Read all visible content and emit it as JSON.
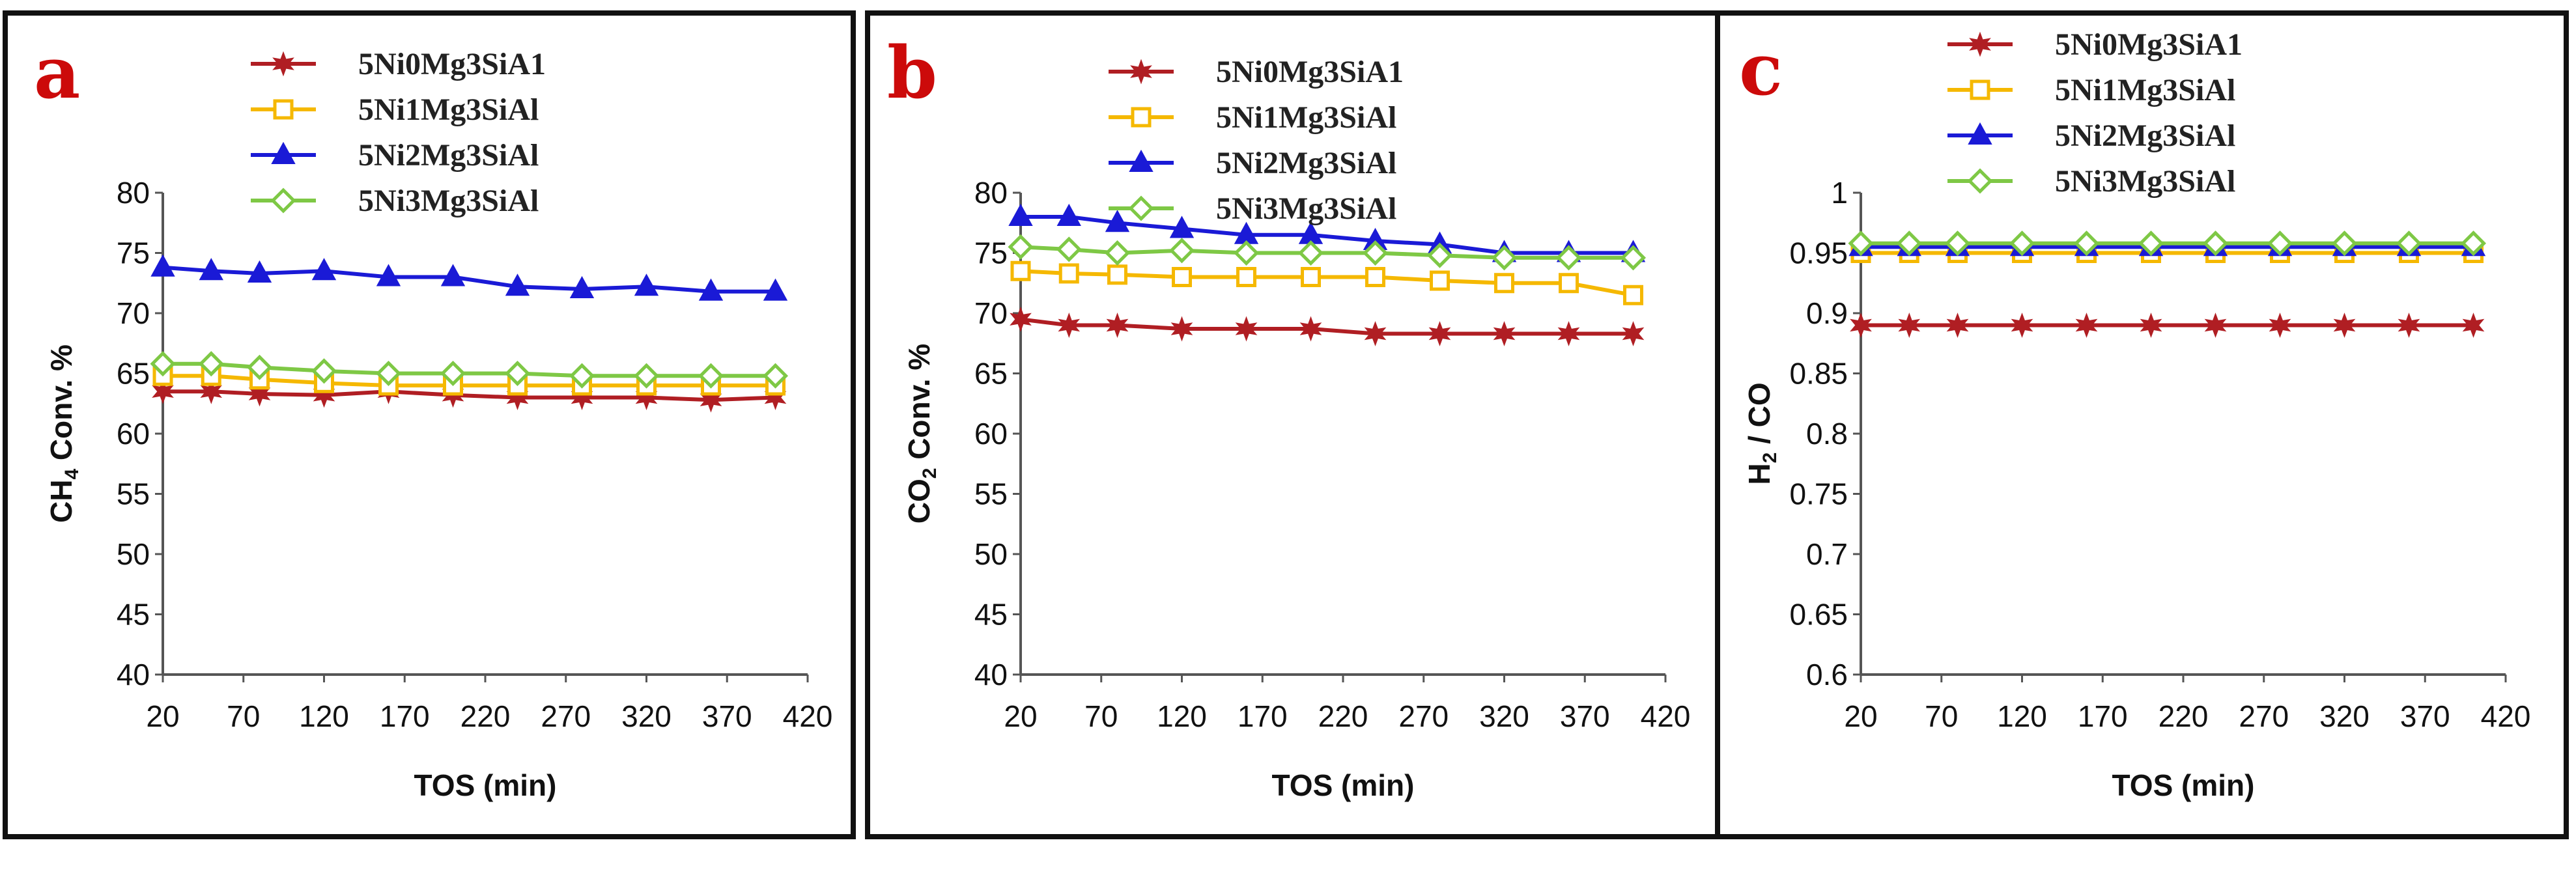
{
  "chart_data": [
    {
      "panel": "a",
      "type": "line",
      "xlabel": "TOS (min)",
      "ylabel": "CH4 Conv. %",
      "ylabel_parts": [
        "CH",
        "4",
        " Conv. %"
      ],
      "ylim": [
        40,
        80
      ],
      "yticks": [
        40,
        45,
        50,
        55,
        60,
        65,
        70,
        75,
        80
      ],
      "xlim": [
        20,
        420
      ],
      "xticks": [
        20,
        70,
        120,
        170,
        220,
        270,
        320,
        370,
        420
      ],
      "x": [
        20,
        50,
        80,
        120,
        160,
        200,
        240,
        280,
        320,
        360,
        400
      ],
      "legend_position": "top-center",
      "series": [
        {
          "name": "5Ni0Mg3SiA1",
          "color": "#b01e23",
          "marker": "star",
          "values": [
            63.5,
            63.5,
            63.3,
            63.2,
            63.5,
            63.2,
            63.0,
            63.0,
            63.0,
            62.8,
            63.0
          ]
        },
        {
          "name": "5Ni1Mg3SiAl",
          "color": "#f5b800",
          "marker": "square",
          "values": [
            64.8,
            64.8,
            64.5,
            64.2,
            64.0,
            64.0,
            64.0,
            64.0,
            64.0,
            64.0,
            64.0
          ]
        },
        {
          "name": "5Ni2Mg3SiAl",
          "color": "#1a1ad6",
          "marker": "triangle",
          "values": [
            73.8,
            73.5,
            73.3,
            73.5,
            73.0,
            73.0,
            72.2,
            72.0,
            72.2,
            71.8,
            71.8
          ]
        },
        {
          "name": "5Ni3Mg3SiAl",
          "color": "#7ec845",
          "marker": "diamond",
          "values": [
            65.8,
            65.8,
            65.5,
            65.2,
            65.0,
            65.0,
            65.0,
            64.8,
            64.8,
            64.8,
            64.8
          ]
        }
      ]
    },
    {
      "panel": "b",
      "type": "line",
      "xlabel": "TOS (min)",
      "ylabel": "CO2 Conv. %",
      "ylabel_parts": [
        "CO",
        "2",
        " Conv. %"
      ],
      "ylim": [
        40,
        80
      ],
      "yticks": [
        40,
        45,
        50,
        55,
        60,
        65,
        70,
        75,
        80
      ],
      "xlim": [
        20,
        420
      ],
      "xticks": [
        20,
        70,
        120,
        170,
        220,
        270,
        320,
        370,
        420
      ],
      "x": [
        20,
        50,
        80,
        120,
        160,
        200,
        240,
        280,
        320,
        360,
        400
      ],
      "legend_position": "top-center",
      "series": [
        {
          "name": "5Ni0Mg3SiA1",
          "color": "#b01e23",
          "marker": "star",
          "values": [
            69.5,
            69.0,
            69.0,
            68.7,
            68.7,
            68.7,
            68.3,
            68.3,
            68.3,
            68.3,
            68.3
          ]
        },
        {
          "name": "5Ni1Mg3SiAl",
          "color": "#f5b800",
          "marker": "square",
          "values": [
            73.5,
            73.3,
            73.2,
            73.0,
            73.0,
            73.0,
            73.0,
            72.7,
            72.5,
            72.5,
            71.5
          ]
        },
        {
          "name": "5Ni2Mg3SiAl",
          "color": "#1a1ad6",
          "marker": "triangle",
          "values": [
            78.0,
            78.0,
            77.5,
            77.0,
            76.5,
            76.5,
            76.0,
            75.7,
            75.0,
            75.0,
            75.0
          ]
        },
        {
          "name": "5Ni3Mg3SiAl",
          "color": "#7ec845",
          "marker": "diamond",
          "values": [
            75.5,
            75.3,
            75.0,
            75.2,
            75.0,
            75.0,
            75.0,
            74.8,
            74.6,
            74.6,
            74.6
          ]
        }
      ]
    },
    {
      "panel": "c",
      "type": "line",
      "xlabel": "TOS (min)",
      "ylabel": "H2 / CO",
      "ylabel_parts": [
        "H",
        "2",
        " / CO"
      ],
      "ylim": [
        0.6,
        1
      ],
      "yticks": [
        0.6,
        0.65,
        0.7,
        0.75,
        0.8,
        0.85,
        0.9,
        0.95,
        1
      ],
      "xlim": [
        20,
        420
      ],
      "xticks": [
        20,
        70,
        120,
        170,
        220,
        270,
        320,
        370,
        420
      ],
      "x": [
        20,
        50,
        80,
        120,
        160,
        200,
        240,
        280,
        320,
        360,
        400
      ],
      "legend_position": "top-center",
      "series": [
        {
          "name": "5Ni0Mg3SiA1",
          "color": "#b01e23",
          "marker": "star",
          "values": [
            0.89,
            0.89,
            0.89,
            0.89,
            0.89,
            0.89,
            0.89,
            0.89,
            0.89,
            0.89,
            0.89
          ]
        },
        {
          "name": "5Ni1Mg3SiAl",
          "color": "#f5b800",
          "marker": "square",
          "values": [
            0.95,
            0.95,
            0.95,
            0.95,
            0.95,
            0.95,
            0.95,
            0.95,
            0.95,
            0.95,
            0.95
          ]
        },
        {
          "name": "5Ni2Mg3SiAl",
          "color": "#1a1ad6",
          "marker": "triangle",
          "values": [
            0.955,
            0.955,
            0.955,
            0.955,
            0.955,
            0.955,
            0.955,
            0.955,
            0.955,
            0.955,
            0.955
          ]
        },
        {
          "name": "5Ni3Mg3SiAl",
          "color": "#7ec845",
          "marker": "diamond",
          "values": [
            0.958,
            0.958,
            0.958,
            0.958,
            0.958,
            0.958,
            0.958,
            0.958,
            0.958,
            0.958,
            0.958
          ]
        }
      ]
    }
  ]
}
